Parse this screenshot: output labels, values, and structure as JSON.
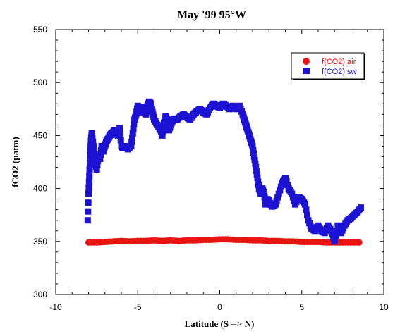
{
  "chart_data": {
    "type": "scatter",
    "title": "May '99 95°W",
    "xlabel": "Latitude (S --> N)",
    "ylabel": "fCO2 (µatm)",
    "xlim": [
      -10,
      10
    ],
    "ylim": [
      300,
      550
    ],
    "xticks": [
      -10,
      -5,
      0,
      5,
      10
    ],
    "yticks": [
      300,
      350,
      400,
      450,
      500,
      550
    ],
    "legend_position": "top-right",
    "grid": false,
    "series": [
      {
        "name": "f(CO2) air",
        "color": "#e8140f",
        "marker": "circle",
        "x": [
          -8.0,
          -7.5,
          -7.0,
          -6.5,
          -6.0,
          -5.5,
          -5.0,
          -4.5,
          -4.0,
          -3.5,
          -3.0,
          -2.5,
          -2.0,
          -1.5,
          -1.0,
          -0.5,
          0.0,
          0.5,
          1.0,
          1.5,
          2.0,
          2.5,
          3.0,
          3.5,
          4.0,
          4.5,
          5.0,
          5.5,
          6.0,
          6.5,
          7.0,
          7.5,
          8.0,
          8.5
        ],
        "y": [
          349,
          349,
          349.5,
          350,
          350.5,
          350,
          350.5,
          350.5,
          351,
          350.5,
          351,
          350.5,
          351,
          351,
          351.5,
          351.5,
          352,
          352,
          351.5,
          351.5,
          351,
          351,
          350.5,
          350.5,
          350,
          350,
          349.5,
          349.5,
          349.5,
          349,
          349,
          349,
          349,
          349
        ]
      },
      {
        "name": "f(CO2) sw",
        "color": "#1c12d4",
        "marker": "square",
        "x": [
          -8.05,
          -8.0,
          -7.95,
          -7.9,
          -7.85,
          -7.8,
          -7.7,
          -7.6,
          -7.5,
          -7.4,
          -7.3,
          -7.2,
          -7.1,
          -7.0,
          -6.9,
          -6.8,
          -6.7,
          -6.6,
          -6.5,
          -6.4,
          -6.3,
          -6.2,
          -6.1,
          -6.0,
          -5.9,
          -5.8,
          -5.6,
          -5.4,
          -5.3,
          -5.2,
          -5.1,
          -5.0,
          -4.9,
          -4.8,
          -4.7,
          -4.6,
          -4.5,
          -4.4,
          -4.3,
          -4.2,
          -4.1,
          -4.0,
          -3.8,
          -3.6,
          -3.5,
          -3.4,
          -3.3,
          -3.2,
          -3.1,
          -3.0,
          -2.9,
          -2.8,
          -2.6,
          -2.4,
          -2.2,
          -2.0,
          -1.8,
          -1.6,
          -1.4,
          -1.2,
          -1.0,
          -0.8,
          -0.6,
          -0.4,
          -0.2,
          0.0,
          0.2,
          0.4,
          0.6,
          0.8,
          1.0,
          1.2,
          1.4,
          1.5,
          1.6,
          1.7,
          1.8,
          1.9,
          2.0,
          2.1,
          2.2,
          2.3,
          2.4,
          2.5,
          2.6,
          2.7,
          2.8,
          2.9,
          3.0,
          3.2,
          3.4,
          3.6,
          3.8,
          4.0,
          4.2,
          4.4,
          4.6,
          4.8,
          5.0,
          5.2,
          5.4,
          5.6,
          5.8,
          6.0,
          6.2,
          6.4,
          6.6,
          6.8,
          7.0,
          7.2,
          7.4,
          7.6,
          7.8,
          8.0,
          8.2,
          8.4,
          8.6
        ],
        "y": [
          370,
          395,
          412,
          430,
          445,
          452,
          440,
          425,
          418,
          430,
          428,
          440,
          435,
          440,
          445,
          447,
          450,
          452,
          453,
          455,
          452,
          450,
          457,
          440,
          438,
          440,
          437,
          440,
          452,
          465,
          470,
          478,
          475,
          472,
          477,
          472,
          470,
          478,
          482,
          480,
          472,
          465,
          460,
          455,
          450,
          462,
          468,
          465,
          455,
          460,
          463,
          466,
          465,
          468,
          470,
          467,
          465,
          470,
          473,
          475,
          472,
          470,
          476,
          480,
          478,
          476,
          480,
          478,
          475,
          478,
          475,
          478,
          470,
          465,
          460,
          455,
          450,
          445,
          440,
          430,
          420,
          410,
          400,
          395,
          400,
          395,
          385,
          390,
          388,
          383,
          385,
          395,
          405,
          410,
          400,
          395,
          385,
          392,
          390,
          385,
          370,
          362,
          360,
          365,
          360,
          358,
          365,
          360,
          350,
          365,
          358,
          365,
          370,
          372,
          375,
          378,
          382
        ]
      }
    ]
  }
}
